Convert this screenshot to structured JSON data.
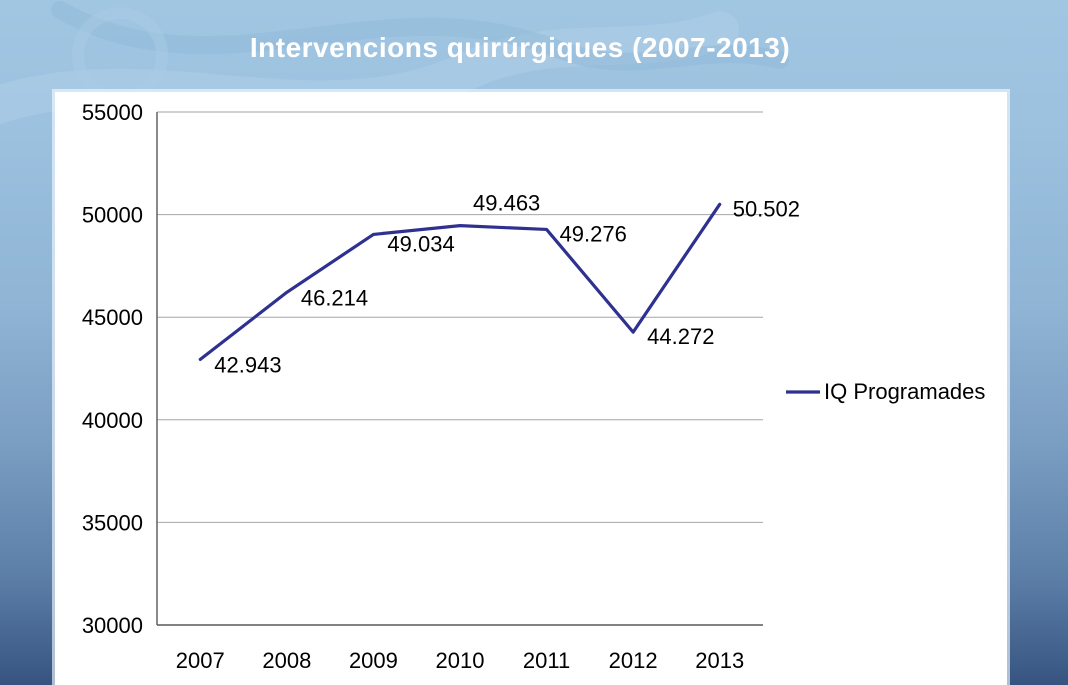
{
  "title": "Intervencions quirúrgiques (2007-2013)",
  "chart_data": {
    "type": "line",
    "title": "Intervencions quirúrgiques (2007-2013)",
    "categories": [
      "2007",
      "2008",
      "2009",
      "2010",
      "2011",
      "2012",
      "2013"
    ],
    "series": [
      {
        "name": "IQ Programades",
        "values": [
          42943,
          46214,
          49034,
          49463,
          49276,
          44272,
          50502
        ],
        "point_labels": [
          "42.943",
          "46.214",
          "49.034",
          "49.463",
          "49.276",
          "44.272",
          "50.502"
        ],
        "color": "#2F3191"
      }
    ],
    "xlabel": "",
    "ylabel": "",
    "ylim": [
      30000,
      55000
    ],
    "ytick_step": 5000,
    "yticks": [
      "55000",
      "50000",
      "45000",
      "40000",
      "35000",
      "30000"
    ],
    "grid": "horizontal-only",
    "legend": {
      "label": "IQ Programades",
      "position": "right-middle"
    }
  },
  "colors": {
    "series_line": "#2F3191",
    "gridline": "#A6A6A6",
    "axis": "#595959",
    "label_text": "#000000",
    "title_text": "#FFFFFF",
    "panel_bg": "#FFFFFF",
    "bg_gradient_top": "#A1C6E2",
    "bg_gradient_bottom": "#375480"
  }
}
